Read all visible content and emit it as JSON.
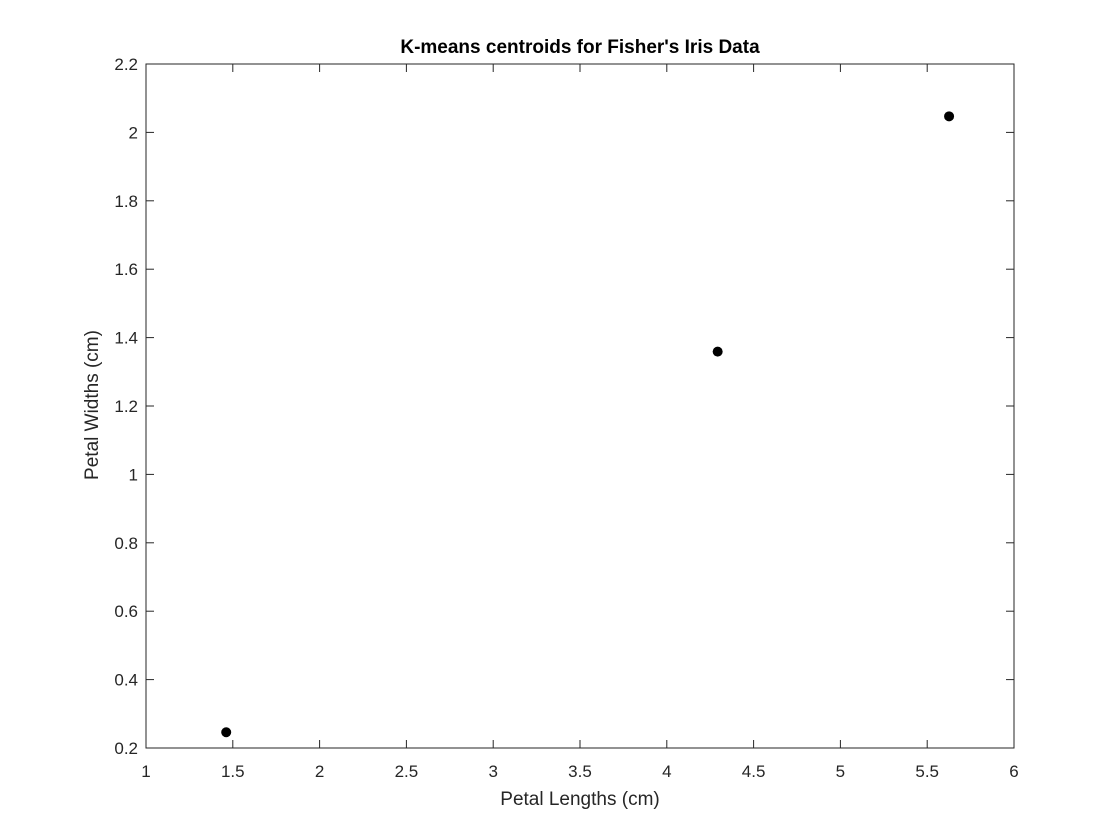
{
  "chart_data": {
    "type": "scatter",
    "title": "K-means centroids for Fisher's Iris Data",
    "xlabel": "Petal Lengths (cm)",
    "ylabel": "Petal Widths (cm)",
    "xlim": [
      1,
      6
    ],
    "ylim": [
      0.2,
      2.2
    ],
    "xticks": [
      1,
      1.5,
      2,
      2.5,
      3,
      3.5,
      4,
      4.5,
      5,
      5.5,
      6
    ],
    "yticks": [
      0.2,
      0.4,
      0.6,
      0.8,
      1,
      1.2,
      1.4,
      1.6,
      1.8,
      2,
      2.2
    ],
    "xtick_labels": [
      "1",
      "1.5",
      "2",
      "2.5",
      "3",
      "3.5",
      "4",
      "4.5",
      "5",
      "5.5",
      "6"
    ],
    "ytick_labels": [
      "0.2",
      "0.4",
      "0.6",
      "0.8",
      "1",
      "1.2",
      "1.4",
      "1.6",
      "1.8",
      "2",
      "2.2"
    ],
    "grid": false,
    "marker_color": "#000000",
    "axis_color": "#262626",
    "series": [
      {
        "points": [
          {
            "x": 1.462,
            "y": 0.246
          },
          {
            "x": 4.293,
            "y": 1.359
          },
          {
            "x": 5.626,
            "y": 2.047
          }
        ]
      }
    ]
  }
}
